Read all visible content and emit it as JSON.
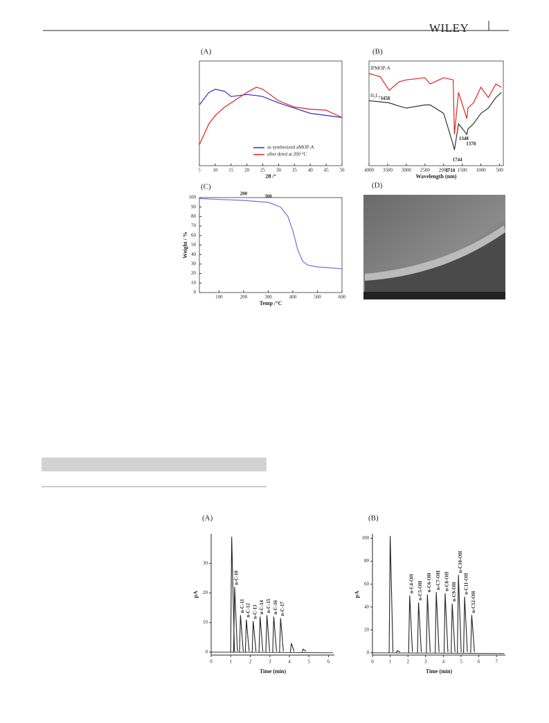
{
  "header": {
    "logo": "WILEY"
  },
  "chart_data": [
    {
      "type": "line",
      "panel": "(A)",
      "xlabel": "2θ /°",
      "x": [
        5,
        8,
        10,
        13,
        15,
        20,
        23,
        25,
        30,
        35,
        40,
        45,
        50
      ],
      "series": [
        {
          "name": "as synthesized aMOP-A",
          "color": "#2a2ad0",
          "values": [
            58,
            70,
            73,
            71,
            66,
            68,
            67,
            66,
            60,
            55,
            50,
            48,
            46
          ]
        },
        {
          "name": "after dried at 200 °C",
          "color": "#e02020",
          "values": [
            20,
            40,
            48,
            56,
            60,
            70,
            75,
            73,
            62,
            56,
            54,
            53,
            46
          ]
        }
      ],
      "xlim": [
        5,
        50
      ],
      "ylim": [
        0,
        100
      ],
      "xticks": [
        5,
        10,
        15,
        20,
        25,
        30,
        35,
        40,
        45,
        50
      ],
      "legend": "lower-right"
    },
    {
      "type": "line",
      "panel": "(B)",
      "xlabel": "Wavelength (nm)",
      "x": [
        4000,
        3700,
        3458,
        3200,
        3000,
        2500,
        2360,
        2000,
        1744,
        1710,
        1600,
        1378,
        1348,
        1200,
        1000,
        800,
        600,
        450
      ],
      "series": [
        {
          "name": "IPMOP-A",
          "color": "#e02020",
          "values": [
            88,
            85,
            72,
            80,
            82,
            84,
            78,
            84,
            82,
            30,
            70,
            45,
            55,
            60,
            75,
            65,
            78,
            75
          ]
        },
        {
          "name": "H₂L₃",
          "color": "#333333",
          "values": [
            62,
            61,
            60,
            57,
            55,
            58,
            58,
            50,
            20,
            15,
            40,
            30,
            35,
            40,
            50,
            55,
            65,
            70
          ]
        }
      ],
      "annotations": [
        3458,
        1744,
        1710,
        1378,
        1348
      ],
      "xlim": [
        4000,
        400
      ],
      "ylim": [
        0,
        100
      ],
      "xticks": [
        4000,
        3500,
        3000,
        2500,
        2000,
        1500,
        1000,
        500
      ]
    },
    {
      "type": "line",
      "panel": "(C)",
      "xlabel": "Temp /°C",
      "ylabel": "Weight / %",
      "x": [
        20,
        100,
        200,
        300,
        350,
        380,
        400,
        420,
        440,
        460,
        500,
        550,
        600
      ],
      "series": [
        {
          "name": null,
          "color": "#6f6fd8",
          "values": [
            99,
            98,
            97,
            95,
            90,
            80,
            65,
            45,
            33,
            29,
            27,
            26,
            25
          ]
        }
      ],
      "annotations": [
        200,
        300
      ],
      "xlim": [
        20,
        600
      ],
      "ylim": [
        0,
        100
      ],
      "xticks": [
        100,
        200,
        300,
        400,
        500,
        600
      ],
      "yticks": [
        0,
        10,
        20,
        30,
        40,
        50,
        60,
        70,
        80,
        90,
        100
      ]
    },
    {
      "type": "chromatogram",
      "panel": "(A)",
      "xlabel": "Time (min)",
      "ylabel": "pA",
      "x": [
        1.05,
        1.2,
        1.5,
        1.8,
        2.15,
        2.5,
        2.85,
        3.2,
        3.55,
        4.1,
        4.7
      ],
      "values": [
        39,
        22,
        12.5,
        11,
        10.5,
        12,
        12.5,
        12,
        11.5,
        3,
        1
      ],
      "labels": [
        null,
        "n-C-10",
        "n-C-11",
        "n-C-12",
        "n-C-13",
        "n-C-14",
        "n-C-15",
        "n-C-16",
        "n-C-17",
        null,
        null
      ],
      "xlim": [
        0,
        6.3
      ],
      "ylim": [
        -1,
        40
      ],
      "xticks": [
        0,
        1,
        2,
        3,
        4,
        5,
        6
      ],
      "yticks": [
        0,
        10,
        20,
        30
      ]
    },
    {
      "type": "chromatogram",
      "panel": "(B)",
      "xlabel": "Time (min)",
      "ylabel": "pA",
      "x": [
        1.0,
        1.4,
        2.1,
        2.6,
        3.1,
        3.6,
        4.1,
        4.5,
        4.85,
        5.2,
        5.6
      ],
      "values": [
        102,
        2,
        50,
        44,
        51,
        53,
        52,
        43,
        68,
        49,
        33
      ],
      "labels": [
        null,
        null,
        "n-C4-OH",
        "n-C5-OH",
        "n-C6-OH",
        "n-C7-OH",
        "n-C8-OH",
        "n-C9-OH",
        "n-C10-OH",
        "n-C11-OH",
        "n-C12-OH"
      ],
      "xlim": [
        0,
        7.5
      ],
      "ylim": [
        -2,
        104
      ],
      "xticks": [
        0,
        1,
        2,
        3,
        4,
        5,
        6,
        7
      ],
      "yticks": [
        0,
        20,
        40,
        60,
        80,
        100
      ]
    }
  ],
  "image_panel": {
    "panel": "(D)"
  }
}
